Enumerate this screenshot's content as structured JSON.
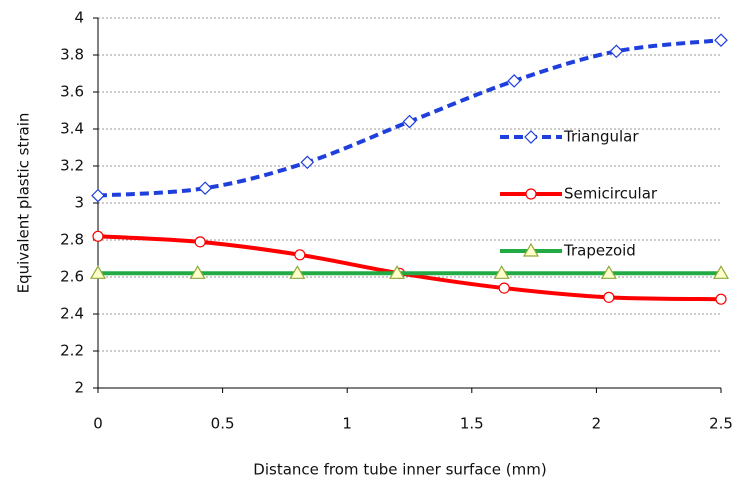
{
  "chart_data": {
    "type": "line",
    "x_label": "Distance from tube inner surface (mm)",
    "y_label": "Equivalent plastic strain",
    "xlim": [
      0,
      2.5
    ],
    "xticks": [
      0,
      0.5,
      1,
      1.5,
      2,
      2.5
    ],
    "ylim": [
      2,
      4
    ],
    "yticks": [
      2,
      2.2,
      2.4,
      2.6,
      2.8,
      3,
      3.2,
      3.4,
      3.6,
      3.8,
      4
    ],
    "grid": true,
    "legend": "right",
    "series": [
      {
        "name": "Triangular",
        "color": "#1f3fdc",
        "marker": "diamond",
        "dashed": true,
        "x": [
          0,
          0.43,
          0.84,
          1.25,
          1.67,
          2.08,
          2.5
        ],
        "values": [
          3.04,
          3.08,
          3.22,
          3.44,
          3.66,
          3.82,
          3.88
        ]
      },
      {
        "name": "Semicircular",
        "color": "#ff0000",
        "marker": "circle",
        "dashed": false,
        "x": [
          0,
          0.41,
          0.81,
          1.21,
          1.63,
          2.05,
          2.5
        ],
        "values": [
          2.82,
          2.79,
          2.72,
          2.62,
          2.54,
          2.49,
          2.48
        ]
      },
      {
        "name": "Trapezoid",
        "color": "#22aa44",
        "marker": "triangle",
        "dashed": false,
        "x": [
          0,
          0.4,
          0.8,
          1.2,
          1.62,
          2.05,
          2.5
        ],
        "values": [
          2.62,
          2.62,
          2.62,
          2.62,
          2.62,
          2.62,
          2.62
        ]
      }
    ]
  }
}
